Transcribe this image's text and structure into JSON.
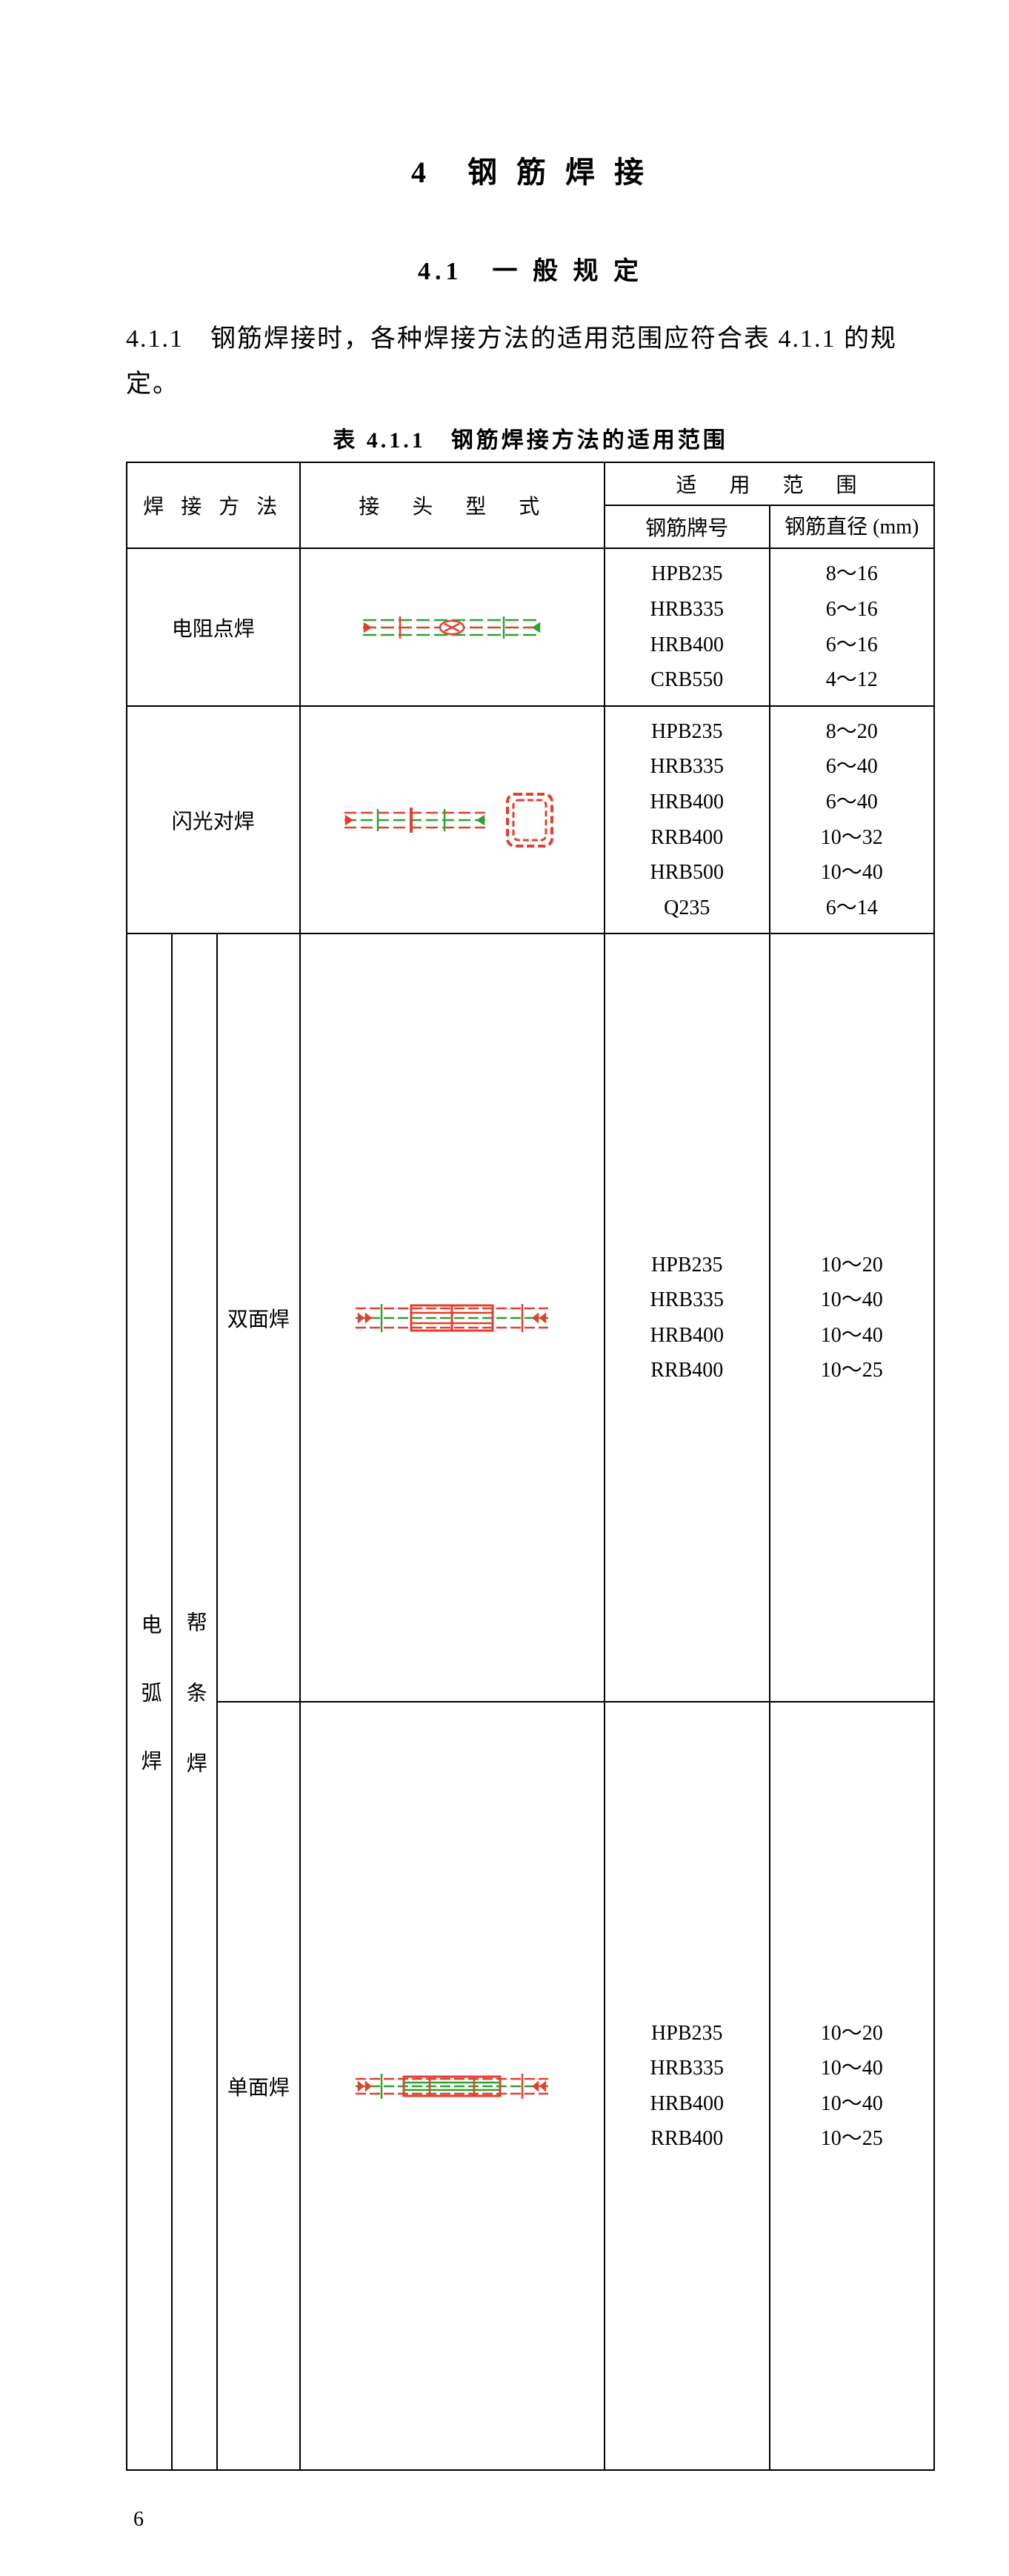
{
  "chapter_title": "4　钢 筋 焊 接",
  "section_title": "4.1　一 般 规 定",
  "paragraph": "4.1.1　钢筋焊接时，各种焊接方法的适用范围应符合表 4.1.1 的规定。",
  "table_caption": "表 4.1.1　钢筋焊接方法的适用范围",
  "page_number": "6",
  "headers": {
    "method": "焊 接 方 法",
    "joint": "接　头　型　式",
    "scope": "适　用　范　围",
    "grade": "钢筋牌号",
    "diameter": "钢筋直径 (mm)"
  },
  "diagram_colors": {
    "red": "#e04030",
    "green": "#30a030",
    "fill": "#ffffff"
  },
  "rows": [
    {
      "method": "电阻点焊",
      "diagram": "spotweld",
      "entries": [
        {
          "grade": "HPB235",
          "diam": "8～16"
        },
        {
          "grade": "HRB335",
          "diam": "6～16"
        },
        {
          "grade": "HRB400",
          "diam": "6～16"
        },
        {
          "grade": "CRB550",
          "diam": "4～12"
        }
      ]
    },
    {
      "method": "闪光对焊",
      "diagram": "flashbutt",
      "entries": [
        {
          "grade": "HPB235",
          "diam": "8～20"
        },
        {
          "grade": "HRB335",
          "diam": "6～40"
        },
        {
          "grade": "HRB400",
          "diam": "6～40"
        },
        {
          "grade": "RRB400",
          "diam": "10～32"
        },
        {
          "grade": "HRB500",
          "diam": "10～40"
        },
        {
          "grade": "Q235",
          "diam": "6～14"
        }
      ]
    },
    {
      "arc_group": "电　弧　焊",
      "lap_group": "帮 条 焊",
      "subrows": [
        {
          "method": "双面焊",
          "diagram": "doubleside",
          "entries": [
            {
              "grade": "HPB235",
              "diam": "10～20"
            },
            {
              "grade": "HRB335",
              "diam": "10～40"
            },
            {
              "grade": "HRB400",
              "diam": "10～40"
            },
            {
              "grade": "RRB400",
              "diam": "10～25"
            }
          ]
        },
        {
          "method": "单面焊",
          "diagram": "singleside",
          "entries": [
            {
              "grade": "HPB235",
              "diam": "10～20"
            },
            {
              "grade": "HRB335",
              "diam": "10～40"
            },
            {
              "grade": "HRB400",
              "diam": "10～40"
            },
            {
              "grade": "RRB400",
              "diam": "10～25"
            }
          ]
        }
      ]
    }
  ]
}
